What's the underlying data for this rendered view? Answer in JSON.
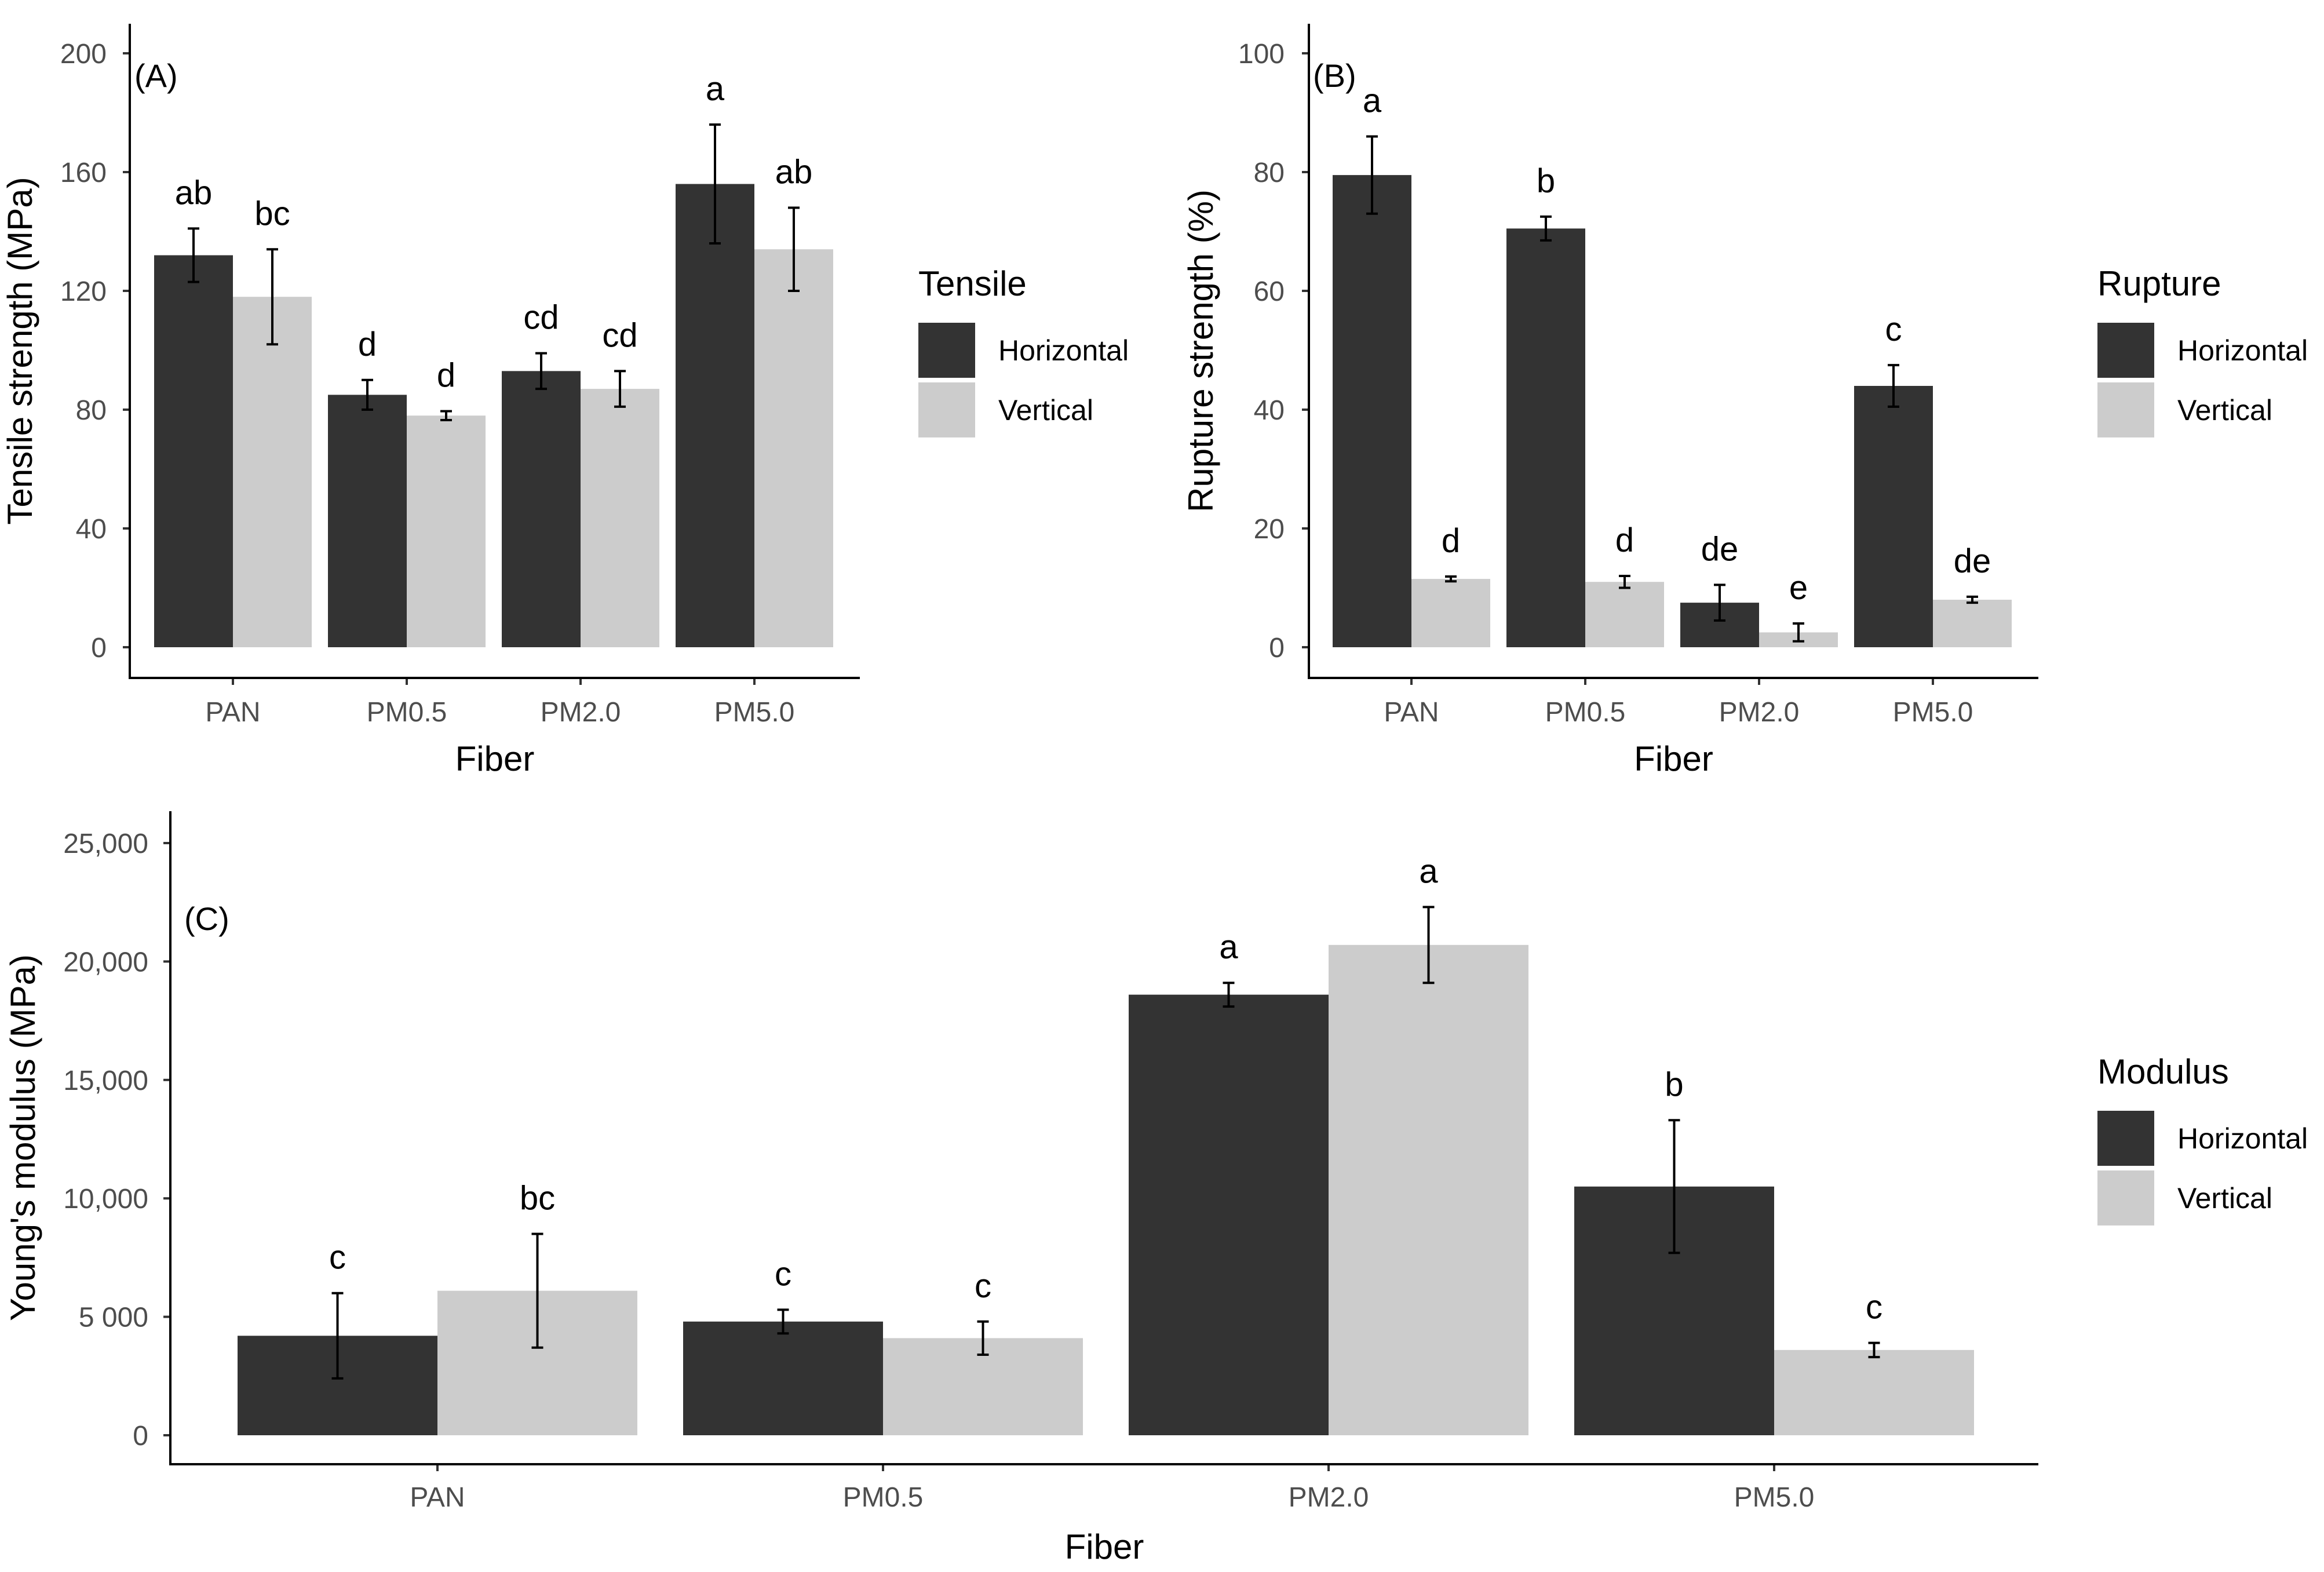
{
  "colors": {
    "horizontal": "#333333",
    "vertical": "#cccccc",
    "axis": "#000000",
    "tick_text": "#4d4d4d"
  },
  "chart_data": [
    {
      "panel": "(A)",
      "type": "bar",
      "categories": [
        "PAN",
        "PM0.5",
        "PM2.0",
        "PM5.0"
      ],
      "xlabel": "Fiber",
      "ylabel": "Tensile strength (MPa)",
      "ylim": [
        0,
        200
      ],
      "yticks": [
        0,
        40,
        80,
        120,
        160,
        200
      ],
      "ytick_labels": [
        "0",
        "40",
        "80",
        "120",
        "160",
        "200"
      ],
      "legend": {
        "title": "Tensile",
        "position": "right",
        "labels": [
          "Horizontal",
          "Vertical"
        ]
      },
      "series": [
        {
          "name": "Horizontal",
          "values": [
            132,
            85,
            93,
            156
          ],
          "error": [
            9,
            5,
            6,
            20
          ],
          "letters": [
            "ab",
            "d",
            "cd",
            "a"
          ]
        },
        {
          "name": "Vertical",
          "values": [
            118,
            78,
            87,
            134
          ],
          "error": [
            16,
            1.5,
            6,
            14
          ],
          "letters": [
            "bc",
            "d",
            "cd",
            "ab"
          ]
        }
      ]
    },
    {
      "panel": "(B)",
      "type": "bar",
      "categories": [
        "PAN",
        "PM0.5",
        "PM2.0",
        "PM5.0"
      ],
      "xlabel": "Fiber",
      "ylabel": "Rupture strength (%)",
      "ylim": [
        0,
        100
      ],
      "yticks": [
        0,
        20,
        40,
        60,
        80,
        100
      ],
      "ytick_labels": [
        "0",
        "20",
        "40",
        "60",
        "80",
        "100"
      ],
      "legend": {
        "title": "Rupture",
        "position": "right",
        "labels": [
          "Horizontal",
          "Vertical"
        ]
      },
      "series": [
        {
          "name": "Horizontal",
          "values": [
            79.5,
            70.5,
            7.5,
            44
          ],
          "error": [
            6.5,
            2,
            3,
            3.5
          ],
          "letters": [
            "a",
            "b",
            "de",
            "c"
          ]
        },
        {
          "name": "Vertical",
          "values": [
            11.5,
            11,
            2.5,
            8
          ],
          "error": [
            0.4,
            1,
            1.5,
            0.5
          ],
          "letters": [
            "d",
            "d",
            "e",
            "de"
          ]
        }
      ]
    },
    {
      "panel": "(C)",
      "type": "bar",
      "categories": [
        "PAN",
        "PM0.5",
        "PM2.0",
        "PM5.0"
      ],
      "xlabel": "Fiber",
      "ylabel": "Young's modulus (MPa)",
      "ylim": [
        0,
        25000
      ],
      "yticks": [
        0,
        5000,
        10000,
        15000,
        20000,
        25000
      ],
      "ytick_labels": [
        "0",
        "5 000",
        "10,000",
        "15,000",
        "20,000",
        "25,000"
      ],
      "legend": {
        "title": "Modulus",
        "position": "right",
        "labels": [
          "Horizontal",
          "Vertical"
        ]
      },
      "series": [
        {
          "name": "Horizontal",
          "values": [
            4200,
            4800,
            18600,
            10500
          ],
          "error": [
            1800,
            500,
            500,
            2800
          ],
          "letters": [
            "c",
            "c",
            "a",
            "b"
          ]
        },
        {
          "name": "Vertical",
          "values": [
            6100,
            4100,
            20700,
            3600
          ],
          "error": [
            2400,
            700,
            1600,
            300
          ],
          "letters": [
            "bc",
            "c",
            "a",
            "c"
          ]
        }
      ]
    }
  ]
}
